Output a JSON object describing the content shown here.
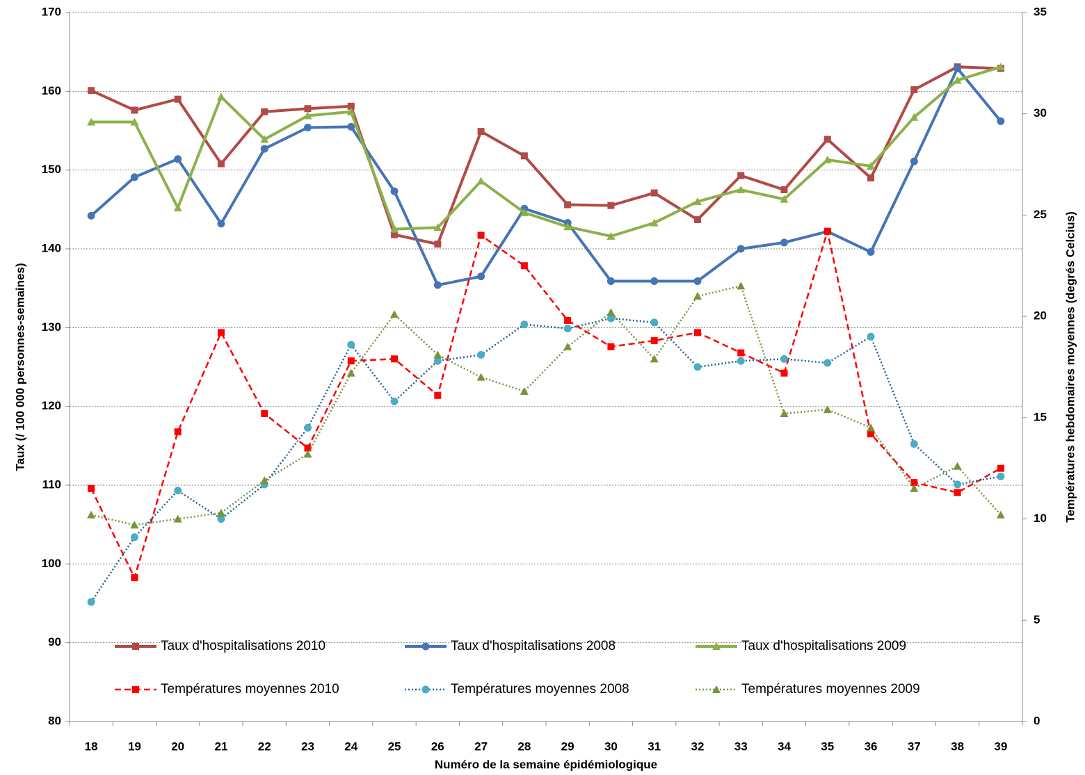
{
  "chart_data": {
    "type": "line",
    "x_label": "Numéro de la semaine épidémiologique",
    "y_label": "Taux (/ 100 000 personnes-semaines)",
    "y2_label": "Températures hebdomaires moyennes (degrés Celcius)",
    "categories": [
      18,
      19,
      20,
      21,
      22,
      23,
      24,
      25,
      26,
      27,
      28,
      29,
      30,
      31,
      32,
      33,
      34,
      35,
      36,
      37,
      38,
      39
    ],
    "ylim": [
      80,
      170
    ],
    "yticks": [
      80,
      90,
      100,
      110,
      120,
      130,
      140,
      150,
      160,
      170
    ],
    "y2lim": [
      0,
      35
    ],
    "y2ticks": [
      0,
      5,
      10,
      15,
      20,
      25,
      30,
      35
    ],
    "grid": true,
    "series": [
      {
        "name": "Taux d'hospitalisations 2010",
        "color": "#b24a48",
        "marker": "square",
        "dash": "solid",
        "values": [
          160.1,
          157.6,
          159.0,
          150.8,
          157.4,
          157.8,
          158.1,
          141.8,
          140.6,
          154.9,
          151.8,
          145.6,
          145.5,
          147.1,
          143.7,
          149.3,
          147.5,
          153.9,
          149.0,
          160.2,
          163.1,
          162.9
        ]
      },
      {
        "name": "Taux d'hospitalisations 2008",
        "color": "#4674b5",
        "marker": "circle",
        "dash": "solid",
        "values": [
          144.2,
          149.1,
          151.4,
          143.2,
          152.7,
          155.4,
          155.5,
          147.3,
          135.4,
          136.5,
          145.1,
          143.3,
          135.9,
          135.9,
          135.9,
          140.0,
          140.8,
          142.2,
          139.6,
          151.1,
          162.9,
          156.2
        ]
      },
      {
        "name": "Taux d'hospitalisations 2009",
        "color": "#8cb14a",
        "marker": "triangle",
        "dash": "solid",
        "values": [
          156.1,
          156.1,
          145.2,
          159.3,
          153.9,
          156.9,
          157.4,
          142.5,
          142.7,
          148.6,
          144.6,
          142.8,
          141.6,
          143.3,
          146.0,
          147.5,
          146.3,
          151.3,
          150.5,
          156.7,
          161.4,
          163.1
        ]
      },
      {
        "name": "Températures  moyennes 2010",
        "color": "#ff0000",
        "marker": "square",
        "dash": "dashed",
        "axis": "y2",
        "values": [
          11.5,
          7.1,
          14.3,
          19.2,
          15.2,
          13.5,
          17.8,
          17.9,
          16.1,
          24.0,
          22.5,
          19.8,
          18.5,
          18.8,
          19.2,
          18.2,
          17.2,
          24.2,
          14.2,
          11.8,
          11.3,
          12.5
        ]
      },
      {
        "name": "Températures  moyennes 2008",
        "color": "#1f5f9a",
        "marker": "circle",
        "dash": "dotted",
        "axis": "y2",
        "values": [
          5.9,
          9.1,
          11.4,
          10.0,
          11.7,
          14.5,
          18.6,
          15.8,
          17.8,
          18.1,
          19.6,
          19.4,
          19.9,
          19.7,
          17.5,
          17.8,
          17.9,
          17.7,
          19.0,
          13.7,
          11.7,
          12.1
        ]
      },
      {
        "name": "Températures  moyennes 2009",
        "color": "#77933c",
        "marker": "triangle",
        "dash": "dotted",
        "axis": "y2",
        "values": [
          10.2,
          9.7,
          10.0,
          10.3,
          11.9,
          13.2,
          17.2,
          20.1,
          18.1,
          17.0,
          16.3,
          18.5,
          20.2,
          17.9,
          21.0,
          21.5,
          15.2,
          15.4,
          14.5,
          11.5,
          12.6,
          10.2
        ]
      }
    ]
  }
}
